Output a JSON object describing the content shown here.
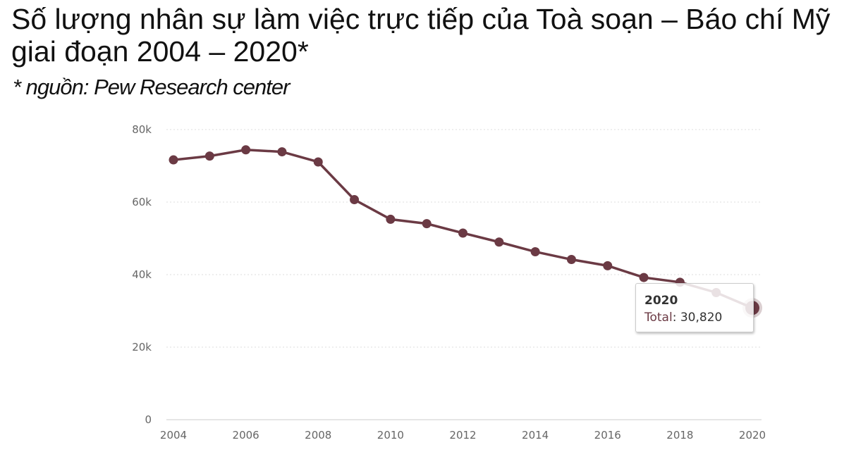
{
  "title": "Số lượng nhân sự làm việc trực tiếp của Toà soạn – Báo chí Mỹ giai đoạn 2004 – 2020*",
  "source": "* nguồn: Pew Research center",
  "chart_data": {
    "type": "line",
    "x": [
      2004,
      2005,
      2006,
      2007,
      2008,
      2009,
      2010,
      2011,
      2012,
      2013,
      2014,
      2015,
      2016,
      2017,
      2018,
      2019,
      2020
    ],
    "series": [
      {
        "name": "Total",
        "values": [
          71640,
          72700,
          74410,
          73870,
          71070,
          60680,
          55260,
          54050,
          51460,
          48980,
          46310,
          44170,
          42450,
          39210,
          37900,
          35050,
          30820
        ]
      }
    ],
    "ylim": [
      0,
      80000
    ],
    "yticks": [
      "0",
      "20k",
      "40k",
      "60k",
      "80k"
    ],
    "xticks": [
      "2004",
      "2006",
      "2008",
      "2010",
      "2012",
      "2014",
      "2016",
      "2018",
      "2020"
    ],
    "grid": true,
    "line_color": "#6b3a44",
    "tooltip": {
      "year": "2020",
      "label": "Total",
      "value": "30,820"
    }
  }
}
